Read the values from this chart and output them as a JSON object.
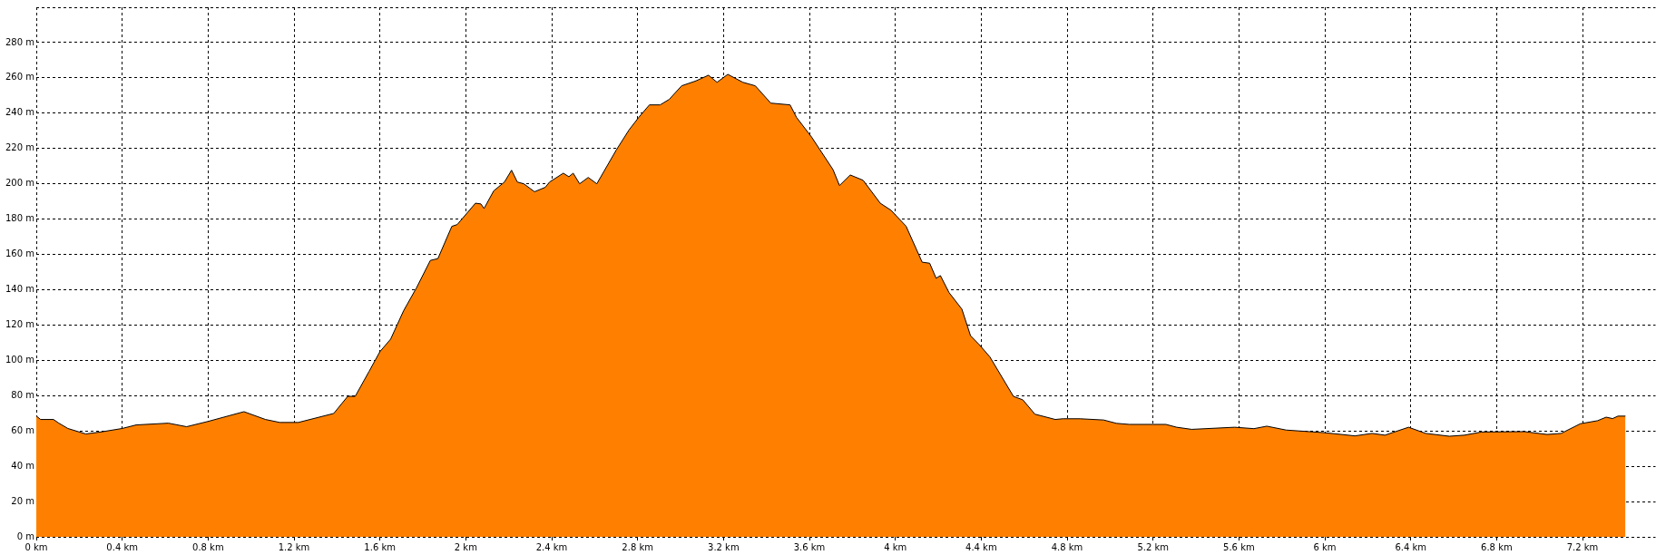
{
  "chart_data": {
    "type": "area",
    "color": "#ff8000",
    "x": [
      0,
      0.02,
      0.08,
      0.105,
      0.147,
      0.23,
      0.3,
      0.4,
      0.465,
      0.615,
      0.7,
      0.8,
      0.967,
      1.067,
      1.134,
      1.22,
      1.385,
      1.45,
      1.485,
      1.55,
      1.6,
      1.65,
      1.71,
      1.77,
      1.835,
      1.87,
      1.935,
      1.96,
      2.045,
      2.07,
      2.085,
      2.13,
      2.18,
      2.213,
      2.24,
      2.27,
      2.32,
      2.37,
      2.39,
      2.454,
      2.48,
      2.5,
      2.53,
      2.57,
      2.61,
      2.7,
      2.76,
      2.805,
      2.855,
      2.905,
      2.947,
      3.005,
      3.072,
      3.13,
      3.17,
      3.22,
      3.29,
      3.348,
      3.42,
      3.51,
      3.54,
      3.61,
      3.71,
      3.74,
      3.79,
      3.85,
      3.93,
      3.98,
      4.05,
      4.125,
      4.16,
      4.19,
      4.21,
      4.25,
      4.31,
      4.35,
      4.39,
      4.44,
      4.55,
      4.594,
      4.65,
      4.745,
      4.78,
      4.86,
      4.97,
      5.03,
      5.09,
      5.26,
      5.31,
      5.38,
      5.58,
      5.67,
      5.73,
      5.82,
      6,
      6.14,
      6.22,
      6.28,
      6.39,
      6.47,
      6.58,
      6.65,
      6.73,
      6.93,
      7.035,
      7.1,
      7.19,
      7.27,
      7.31,
      7.34,
      7.365,
      7.4
    ],
    "values": [
      68.5,
      66.5,
      66.5,
      64.4,
      61.4,
      58.3,
      59.4,
      61.4,
      63.4,
      64.4,
      62.4,
      65.4,
      70.9,
      66.5,
      64.8,
      64.8,
      69.9,
      79.6,
      79.6,
      93.8,
      104.9,
      112,
      128,
      141,
      156.6,
      157.6,
      175.9,
      176.9,
      189,
      188.6,
      186,
      196,
      201,
      207.7,
      201,
      200,
      195.5,
      198,
      201,
      206,
      204,
      206,
      200,
      203.6,
      200,
      219,
      230.5,
      237.6,
      244.7,
      244.7,
      247.8,
      255.5,
      258.3,
      261.5,
      257.5,
      262,
      257.5,
      255.5,
      245.7,
      244.7,
      237.6,
      226.5,
      208,
      199,
      205,
      202,
      189,
      185,
      176,
      155.6,
      155,
      146.5,
      148,
      138.4,
      129,
      114,
      109,
      102,
      79.6,
      77.6,
      69.5,
      66.5,
      66.9,
      66.9,
      66.2,
      64.3,
      63.7,
      63.7,
      62.1,
      60.9,
      62.1,
      61.3,
      62.7,
      60.5,
      59,
      57.2,
      58.6,
      57.6,
      62.1,
      58.6,
      57,
      57.6,
      59.4,
      59.6,
      58,
      58.6,
      64.1,
      65.8,
      67.8,
      67,
      68.4,
      68.4
    ],
    "xlim": [
      0,
      7.54
    ],
    "xticks": [
      {
        "value": 0,
        "label": "0 km"
      },
      {
        "value": 0.4,
        "label": "0.4 km"
      },
      {
        "value": 0.8,
        "label": "0.8 km"
      },
      {
        "value": 1.2,
        "label": "1.2 km"
      },
      {
        "value": 1.6,
        "label": "1.6 km"
      },
      {
        "value": 2,
        "label": "2 km"
      },
      {
        "value": 2.4,
        "label": "2.4 km"
      },
      {
        "value": 2.8,
        "label": "2.8 km"
      },
      {
        "value": 3.2,
        "label": "3.2 km"
      },
      {
        "value": 3.6,
        "label": "3.6 km"
      },
      {
        "value": 4,
        "label": "4 km"
      },
      {
        "value": 4.4,
        "label": "4.4 km"
      },
      {
        "value": 4.8,
        "label": "4.8 km"
      },
      {
        "value": 5.2,
        "label": "5.2 km"
      },
      {
        "value": 5.6,
        "label": "5.6 km"
      },
      {
        "value": 6,
        "label": "6 km"
      },
      {
        "value": 6.4,
        "label": "6.4 km"
      },
      {
        "value": 6.8,
        "label": "6.8 km"
      },
      {
        "value": 7.2,
        "label": "7.2 km"
      }
    ],
    "ylim": [
      0,
      300
    ],
    "yticks": [
      {
        "value": 0,
        "label": "0 m"
      },
      {
        "value": 20,
        "label": "20 m"
      },
      {
        "value": 40,
        "label": "40 m"
      },
      {
        "value": 60,
        "label": "60 m"
      },
      {
        "value": 80,
        "label": "80 m"
      },
      {
        "value": 100,
        "label": "100 m"
      },
      {
        "value": 120,
        "label": "120 m"
      },
      {
        "value": 140,
        "label": "140 m"
      },
      {
        "value": 160,
        "label": "160 m"
      },
      {
        "value": 180,
        "label": "180 m"
      },
      {
        "value": 200,
        "label": "200 m"
      },
      {
        "value": 220,
        "label": "220 m"
      },
      {
        "value": 240,
        "label": "240 m"
      },
      {
        "value": 260,
        "label": "260 m"
      },
      {
        "value": 280,
        "label": "280 m"
      },
      {
        "value": 300,
        "label": null
      }
    ],
    "grid": true,
    "line_style": "solid",
    "marker": "none"
  }
}
